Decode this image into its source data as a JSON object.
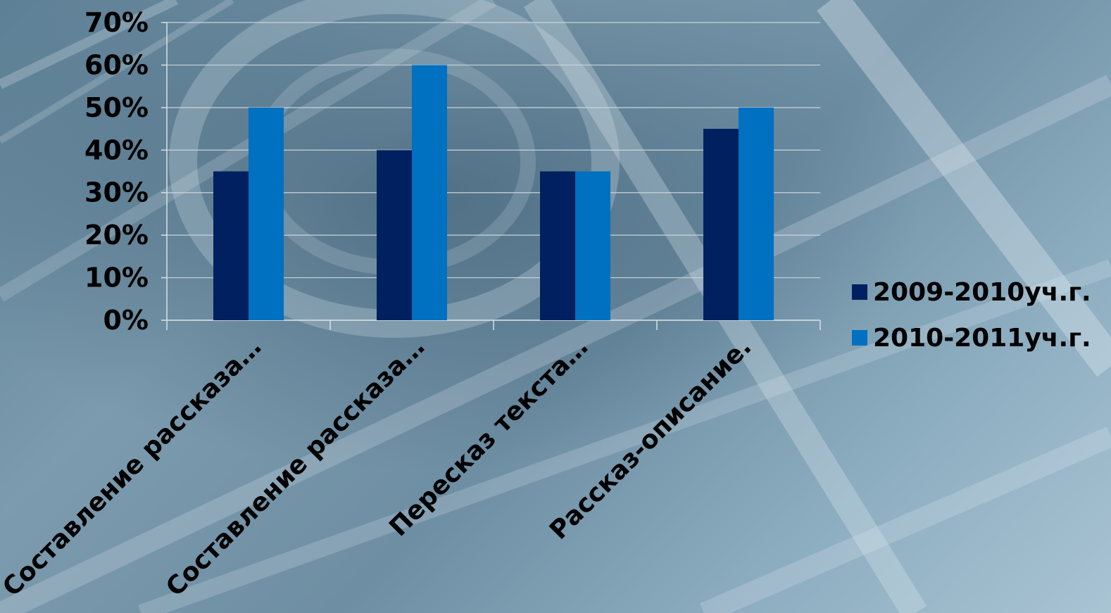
{
  "chart_data": {
    "type": "bar",
    "categories": [
      "Составление рассказа…",
      "Составление рассказа…",
      "Пересказ текста…",
      "Рассказ-описание."
    ],
    "series": [
      {
        "name": "2009-2010уч.г.",
        "values": [
          35,
          40,
          35,
          45
        ],
        "color": "#002060"
      },
      {
        "name": "2010-2011уч.г.",
        "values": [
          50,
          60,
          35,
          50
        ],
        "color": "#0070c0"
      }
    ],
    "ylim": [
      0,
      70
    ],
    "y_ticks": [
      "0%",
      "10%",
      "20%",
      "30%",
      "40%",
      "50%",
      "60%",
      "70%"
    ],
    "y_unit": "%",
    "grid": true,
    "legend_position": "right"
  }
}
